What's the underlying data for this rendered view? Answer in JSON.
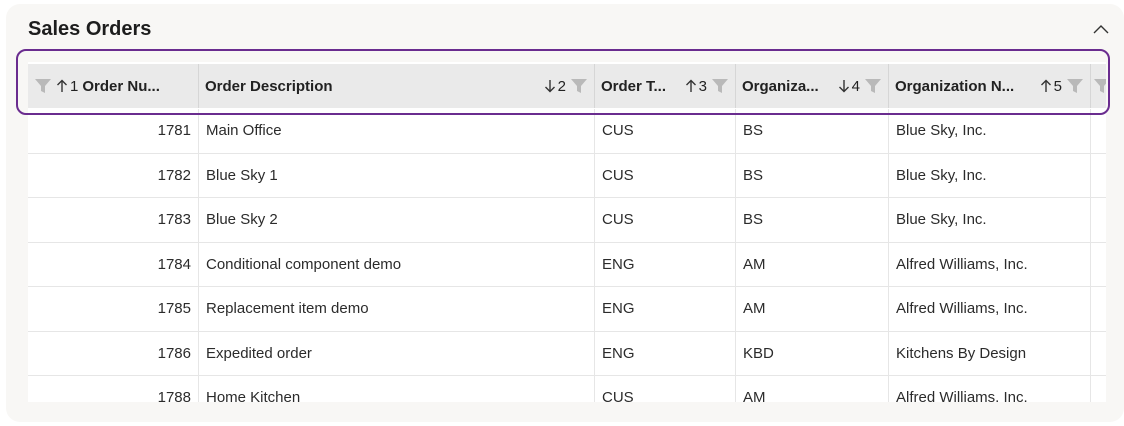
{
  "panel": {
    "title": "Sales Orders",
    "collapse_icon": "chevron-up-icon"
  },
  "columns": [
    {
      "label": "Order Nu...",
      "sort_dir": "asc",
      "sort_rank": "1",
      "filter_icon": "filter-icon"
    },
    {
      "label": "Order Description",
      "sort_dir": "desc",
      "sort_rank": "2",
      "filter_icon": "filter-icon"
    },
    {
      "label": "Order T...",
      "sort_dir": "asc",
      "sort_rank": "3",
      "filter_icon": "filter-icon"
    },
    {
      "label": "Organiza...",
      "sort_dir": "desc",
      "sort_rank": "4",
      "filter_icon": "filter-icon"
    },
    {
      "label": "Organization N...",
      "sort_dir": "asc",
      "sort_rank": "5",
      "filter_icon": "filter-icon"
    }
  ],
  "rows": [
    [
      "1781",
      "Main Office",
      "CUS",
      "BS",
      "Blue Sky, Inc."
    ],
    [
      "1782",
      "Blue Sky 1",
      "CUS",
      "BS",
      "Blue Sky, Inc."
    ],
    [
      "1783",
      "Blue Sky 2",
      "CUS",
      "BS",
      "Blue Sky, Inc."
    ],
    [
      "1784",
      "Conditional component demo",
      "ENG",
      "AM",
      "Alfred Williams, Inc."
    ],
    [
      "1785",
      "Replacement item demo",
      "ENG",
      "AM",
      "Alfred Williams, Inc."
    ],
    [
      "1786",
      "Expedited order",
      "ENG",
      "KBD",
      "Kitchens By Design"
    ],
    [
      "1788",
      "Home Kitchen",
      "CUS",
      "AM",
      "Alfred Williams, Inc."
    ]
  ],
  "colors": {
    "highlight": "#6a2c8f",
    "header_bg": "#eaeaea",
    "panel_bg": "#f8f7f5"
  }
}
